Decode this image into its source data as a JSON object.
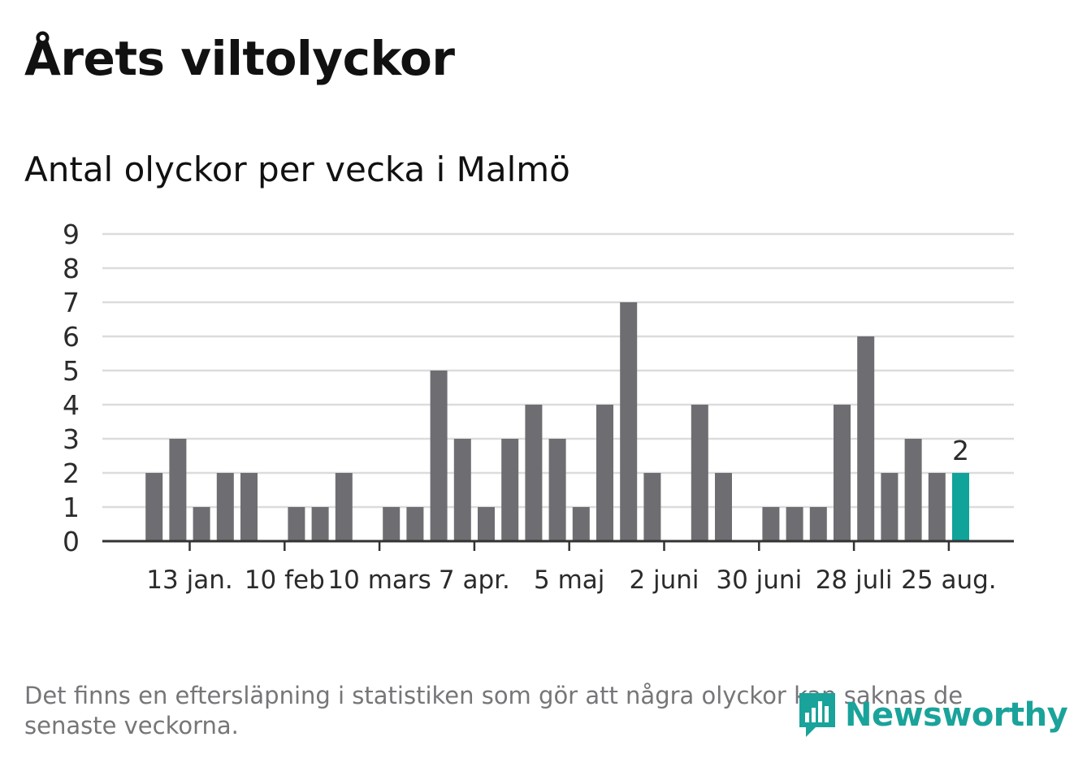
{
  "header": {
    "title": "Årets viltolyckor",
    "subtitle": "Antal olyckor per vecka i Malmö"
  },
  "chart_data": {
    "type": "bar",
    "title": "Årets viltolyckor",
    "subtitle": "Antal olyckor per vecka i Malmö",
    "xlabel": "",
    "ylabel": "",
    "ylim": [
      0,
      9
    ],
    "yticks": [
      0,
      1,
      2,
      3,
      4,
      5,
      6,
      7,
      8,
      9
    ],
    "grid": true,
    "x_tick_labels": [
      "13 jan.",
      "10 feb",
      "10 mars",
      "7 apr.",
      "5 maj",
      "2 juni",
      "30 juni",
      "28 juli",
      "25 aug."
    ],
    "x_tick_weeks": [
      3,
      7,
      11,
      15,
      19,
      23,
      27,
      31,
      35
    ],
    "weeks": [
      1,
      2,
      3,
      4,
      5,
      6,
      7,
      8,
      9,
      10,
      11,
      12,
      13,
      14,
      15,
      16,
      17,
      18,
      19,
      20,
      21,
      22,
      23,
      24,
      25,
      26,
      27,
      28,
      29,
      30,
      31,
      32,
      33,
      34,
      35,
      36,
      37
    ],
    "values": [
      0,
      2,
      3,
      1,
      2,
      2,
      0,
      1,
      1,
      2,
      0,
      1,
      1,
      5,
      3,
      1,
      3,
      4,
      3,
      1,
      4,
      7,
      2,
      0,
      4,
      2,
      0,
      1,
      1,
      1,
      4,
      6,
      2,
      3,
      2,
      2,
      0
    ],
    "highlight_index": 35,
    "highlight_label": "2",
    "colors": {
      "bar": "#6e6d72",
      "highlight": "#0fa39a",
      "grid": "#dcdcdc",
      "axis": "#333333"
    }
  },
  "footer": {
    "note": "Det finns en eftersläpning i statistiken som gör att några olyckor kan saknas de senaste veckorna.",
    "brand": "Newsworthy",
    "brand_icon": "bar-chart-speech-bubble-icon"
  }
}
